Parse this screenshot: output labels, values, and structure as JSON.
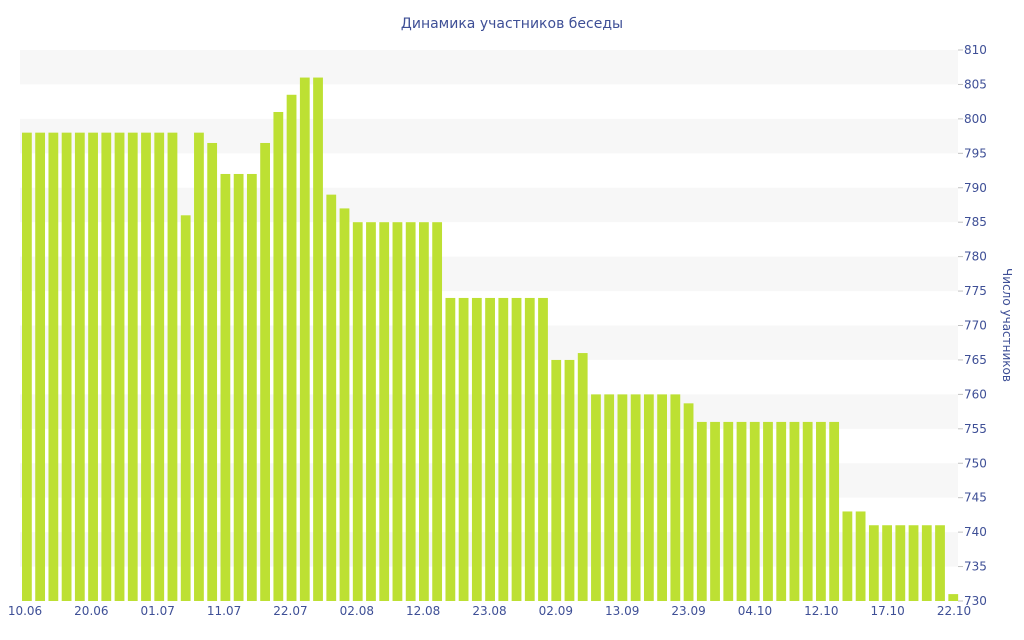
{
  "chart_data": {
    "type": "bar",
    "title": "Динамика участников беседы",
    "ylabel": "Число участников",
    "ylim": [
      730,
      810
    ],
    "y_ticks": [
      810,
      805,
      800,
      795,
      790,
      785,
      780,
      775,
      770,
      765,
      760,
      755,
      750,
      745,
      740,
      735,
      730
    ],
    "x_tick_labels": [
      "10.06",
      "20.06",
      "01.07",
      "11.07",
      "22.07",
      "02.08",
      "12.08",
      "23.08",
      "02.09",
      "13.09",
      "23.09",
      "04.10",
      "12.10",
      "17.10",
      "22.10"
    ],
    "y_axis_position": "right",
    "grid": "alternating horizontal bands",
    "bar_color": "#bde033",
    "band_color": "#f7f7f7",
    "text_color": "#3e4f96",
    "values": [
      798,
      798,
      798,
      798,
      798,
      798,
      798,
      798,
      798,
      798,
      798,
      798,
      786,
      798,
      796.5,
      792,
      792,
      792,
      796.5,
      801,
      803.5,
      806,
      806,
      789,
      787,
      785,
      785,
      785,
      785,
      785,
      785,
      785,
      774,
      774,
      774,
      774,
      774,
      774,
      774,
      774,
      765,
      765,
      766,
      760,
      760,
      760,
      760,
      760,
      760,
      760,
      758.7,
      756,
      756,
      756,
      756,
      756,
      756,
      756,
      756,
      756,
      756,
      756,
      743,
      743,
      741,
      741,
      741,
      741,
      741,
      741,
      731
    ]
  }
}
